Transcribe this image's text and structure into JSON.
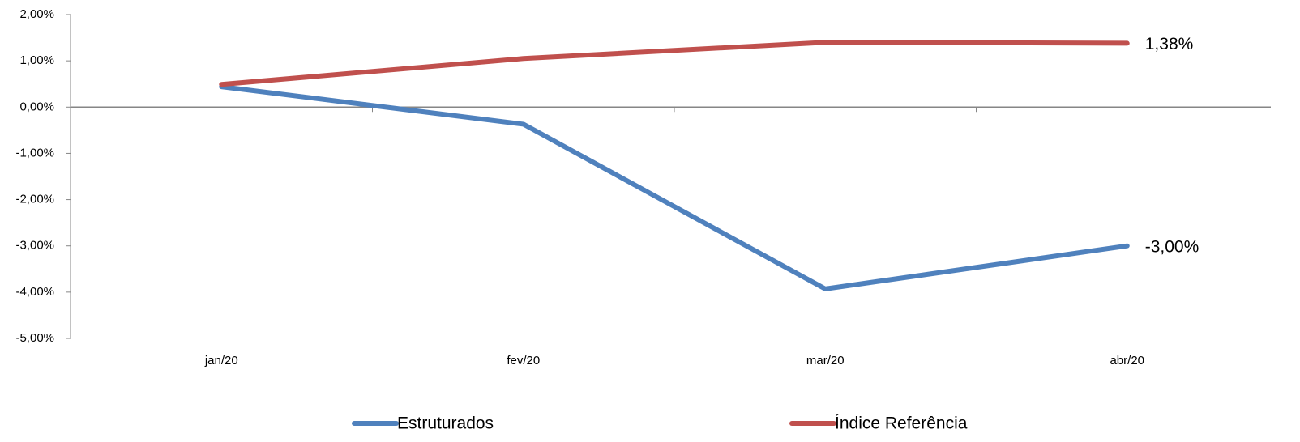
{
  "chart_data": {
    "type": "line",
    "categories": [
      "jan/20",
      "fev/20",
      "mar/20",
      "abr/20"
    ],
    "series": [
      {
        "name": "Estruturados",
        "color": "#4f81bd",
        "values": [
          0.44,
          -0.37,
          -3.93,
          -3.0
        ],
        "value_labels": [
          null,
          null,
          null,
          "-3,00%"
        ]
      },
      {
        "name": "Índice Referência",
        "color": "#c0504d",
        "values": [
          0.49,
          1.05,
          1.4,
          1.38
        ],
        "value_labels": [
          null,
          null,
          null,
          "1,38%"
        ]
      }
    ],
    "ylim": [
      -5,
      2
    ],
    "yticks": [
      {
        "value": 2,
        "label": "2,00%"
      },
      {
        "value": 1,
        "label": "1,00%"
      },
      {
        "value": 0,
        "label": "0,00%"
      },
      {
        "value": -1,
        "label": "-1,00%"
      },
      {
        "value": -2,
        "label": "-2,00%"
      },
      {
        "value": -3,
        "label": "-3,00%"
      },
      {
        "value": -4,
        "label": "-4,00%"
      },
      {
        "value": -5,
        "label": "-5,00%"
      }
    ],
    "legend": "bottom"
  }
}
